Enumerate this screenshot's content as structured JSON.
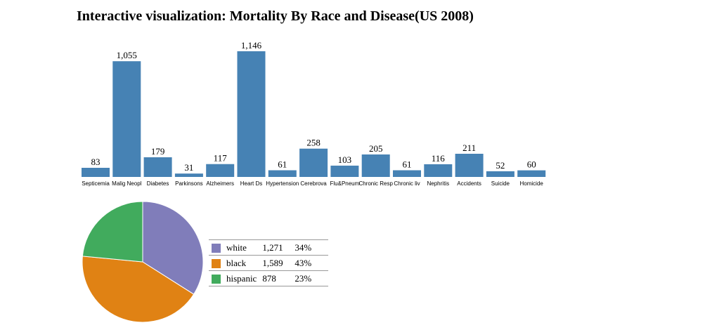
{
  "title": "Interactive visualization: Mortality By Race and Disease(US 2008)",
  "chart_data": [
    {
      "type": "bar",
      "categories": [
        "Septicemia",
        "Malig Neopl",
        "Diabetes",
        "Parkinsons",
        "Alzheimers",
        "Heart Ds",
        "Hypertension",
        "Cerebrova",
        "Flu&Pneum",
        "Chronic Resp",
        "Chronic liv",
        "Nephritis",
        "Accidents",
        "Suicide",
        "Homicide"
      ],
      "values": [
        83,
        1055,
        179,
        31,
        117,
        1146,
        61,
        258,
        103,
        205,
        61,
        116,
        211,
        52,
        60
      ],
      "value_labels": [
        "83",
        "1,055",
        "179",
        "31",
        "117",
        "1,146",
        "61",
        "258",
        "103",
        "205",
        "61",
        "116",
        "211",
        "52",
        "60"
      ],
      "color": "#4682b4"
    },
    {
      "type": "pie",
      "categories": [
        "white",
        "black",
        "hispanic"
      ],
      "values": [
        1271,
        1589,
        878
      ],
      "value_labels": [
        "1,271",
        "1,589",
        "878"
      ],
      "percent_labels": [
        "34%",
        "43%",
        "23%"
      ],
      "colors": [
        "#807dba",
        "#e08214",
        "#41ab5d"
      ]
    }
  ]
}
